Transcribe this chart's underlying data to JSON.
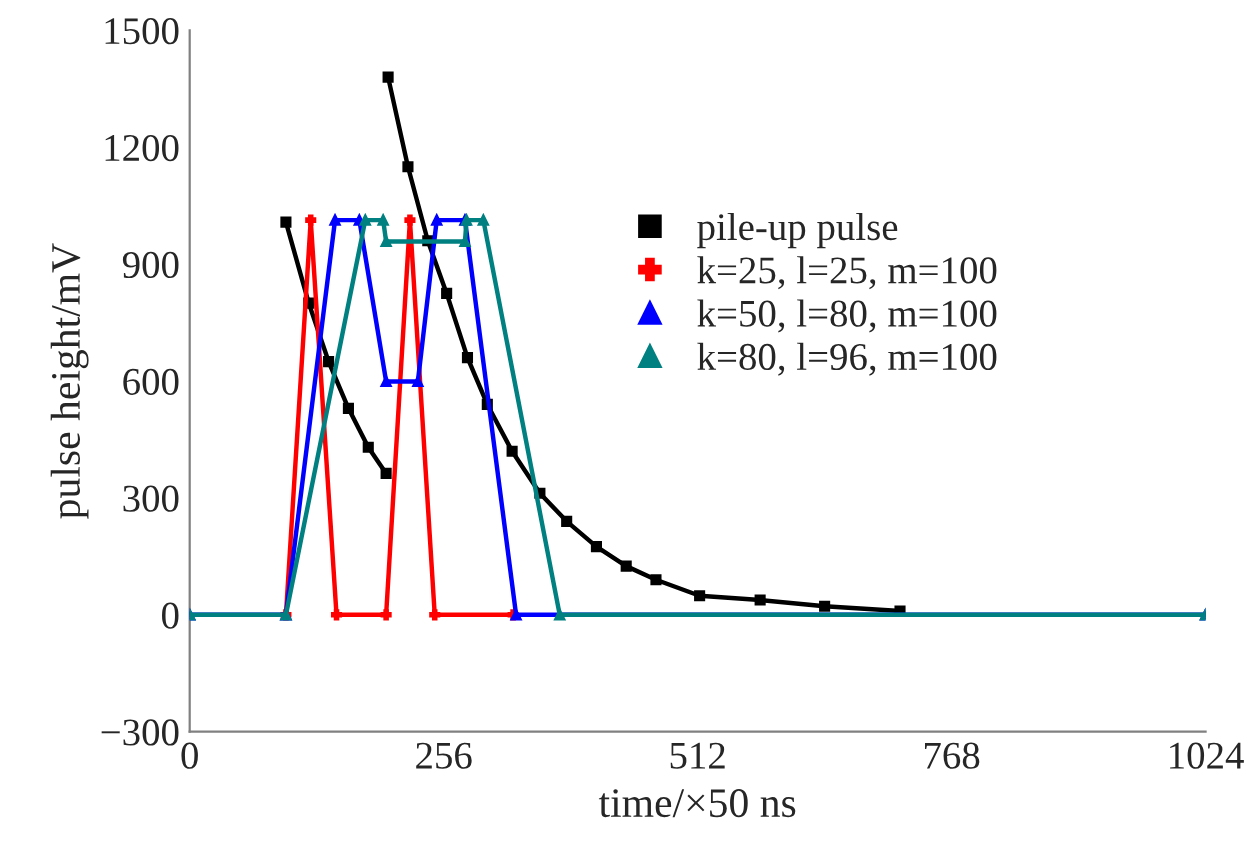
{
  "chart_data": {
    "type": "line",
    "xlabel": "time/×50 ns",
    "ylabel": "pulse height/mV",
    "xlim": [
      0,
      1024
    ],
    "xticks": [
      0,
      256,
      512,
      768,
      1024
    ],
    "ylim": [
      -300,
      1500
    ],
    "yticks": [
      {
        "value": -300,
        "label": "−300"
      },
      0,
      300,
      600,
      900,
      1200,
      1500
    ],
    "grid": false,
    "legend": "top right",
    "series": [
      {
        "name": "pile-up pulse",
        "color": "#000000",
        "marker": "square",
        "x": [
          97,
          120,
          140,
          160,
          180,
          198,
          null,
          200,
          220,
          240,
          259,
          280,
          300,
          325,
          353,
          380,
          410,
          440,
          470,
          514,
          575,
          640,
          716
        ],
        "values": [
          1008,
          800,
          650,
          530,
          430,
          363,
          null,
          1380,
          1150,
          960,
          825,
          660,
          540,
          420,
          312,
          240,
          175,
          125,
          90,
          49,
          38,
          22,
          10
        ]
      },
      {
        "name": "k=25, l=25, m=100",
        "color": "#ff0000",
        "marker": "cross",
        "x": [
          97,
          122,
          148,
          198,
          222,
          247,
          326
        ],
        "values": [
          0,
          1013,
          0,
          0,
          1013,
          0,
          0
        ]
      },
      {
        "name": "k=50, l=80, m=100",
        "color": "#0000ff",
        "marker": "triangle",
        "x": [
          0,
          97,
          146.5,
          171,
          198,
          230,
          249,
          277.5,
          329,
          1024
        ],
        "values": [
          0,
          0,
          1013,
          1013,
          599,
          599,
          1013,
          1013,
          0,
          0
        ]
      },
      {
        "name": "k=80, l=96, m=100",
        "color": "#008080",
        "marker": "triangle",
        "x": [
          0,
          97,
          177,
          195,
          198,
          277.5,
          279,
          296,
          373,
          1024
        ],
        "values": [
          0,
          0,
          1013,
          1013,
          958,
          958,
          1013,
          1013,
          0,
          0
        ]
      }
    ]
  }
}
